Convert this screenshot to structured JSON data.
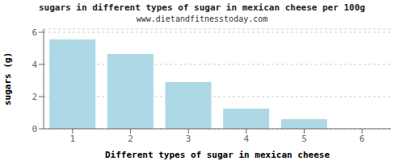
{
  "chart_data": {
    "type": "bar",
    "title": "sugars in different types of sugar in mexican cheese per 100g",
    "subtitle": "www.dietandfitnesstoday.com",
    "xlabel": "Different types of sugar in mexican cheese",
    "ylabel": "sugars (g)",
    "categories": [
      1,
      2,
      3,
      4,
      5,
      6
    ],
    "values": [
      5.55,
      4.65,
      2.9,
      1.25,
      0.6,
      0
    ],
    "color": "#add8e6",
    "ylim": [
      0,
      6.2
    ],
    "yticks": [
      0,
      2,
      4,
      6
    ],
    "grid": true
  }
}
